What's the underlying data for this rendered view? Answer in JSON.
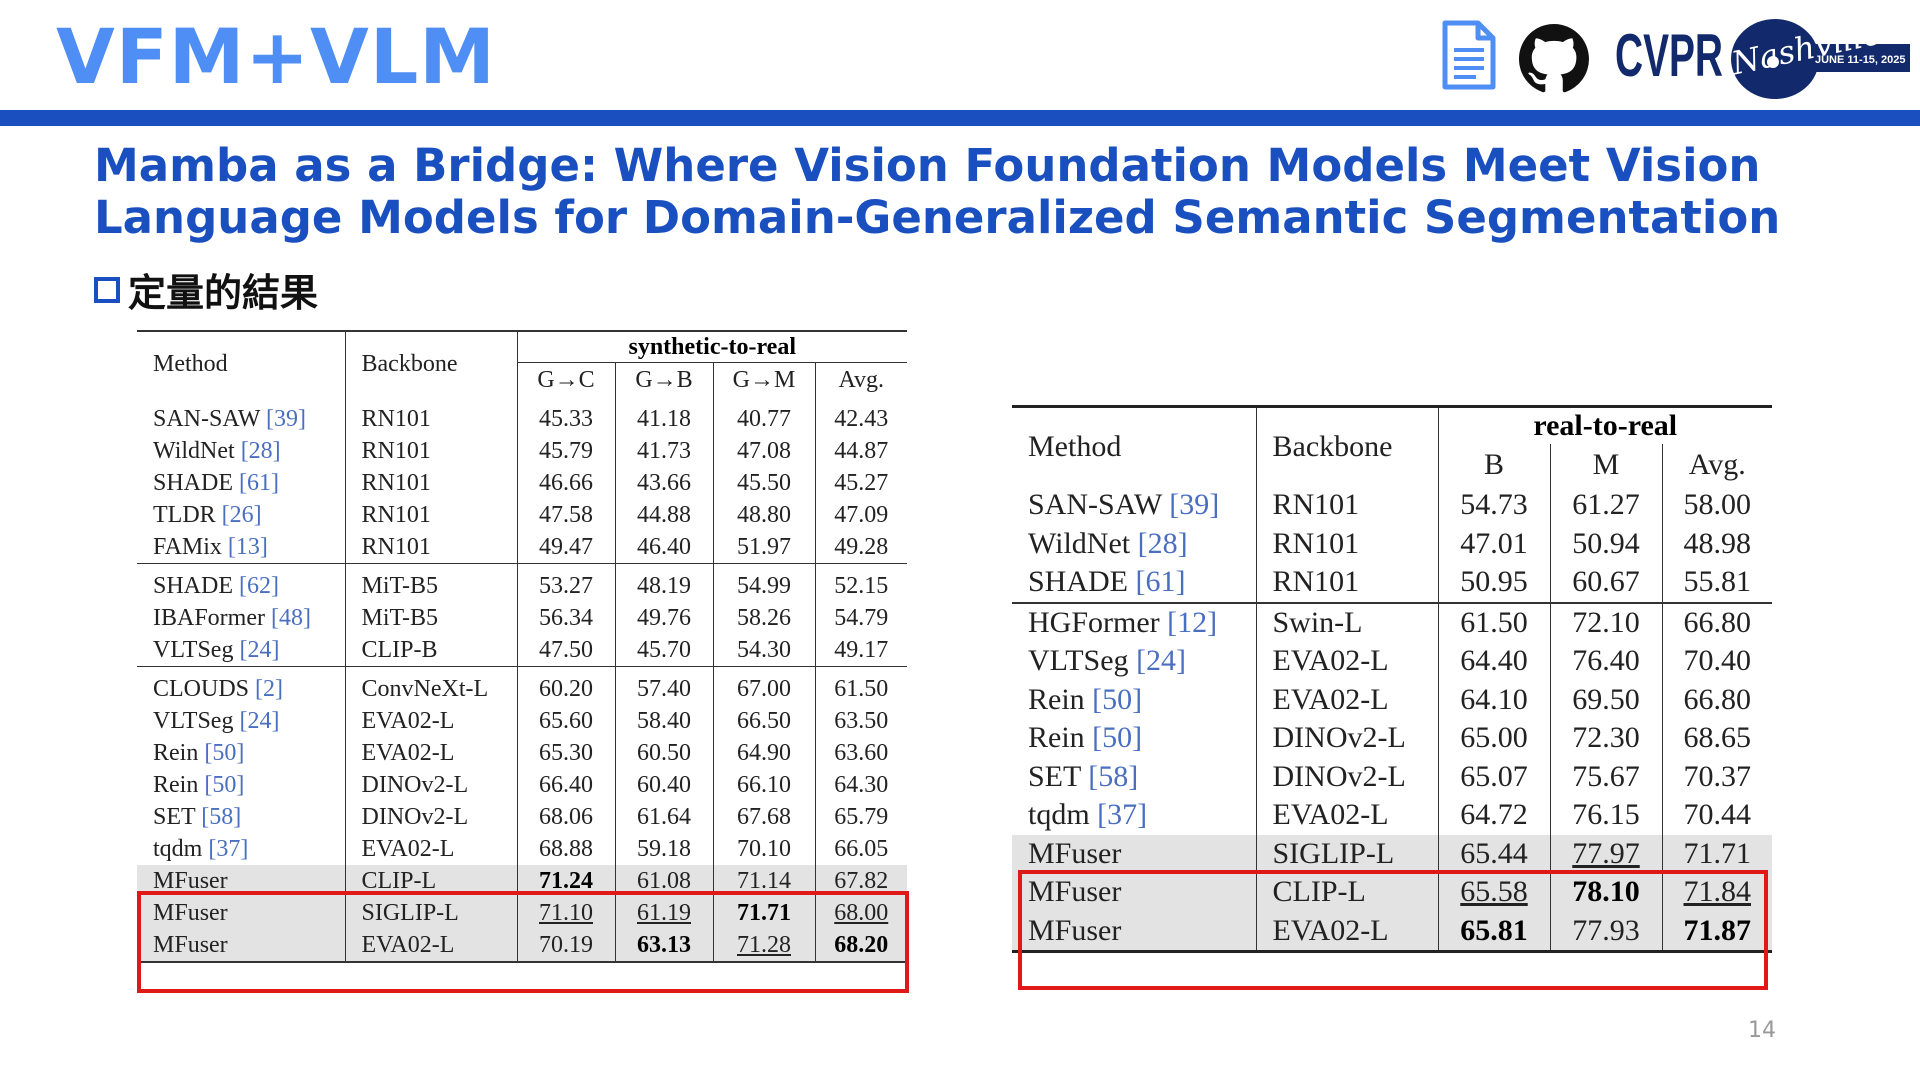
{
  "header": {
    "title": "VFM+VLM",
    "icons": [
      "document-icon",
      "github-icon"
    ],
    "logo": {
      "name": "CVPR",
      "text": "CVPR",
      "script": "Nashville",
      "dates": "JUNE 11-15, 2025"
    }
  },
  "paper_title": {
    "line1": "Mamba as a Bridge: Where Vision Foundation Models Meet Vision",
    "line2": "Language Models for Domain-Generalized Semantic Segmentation"
  },
  "section": {
    "label": "定量的結果"
  },
  "table_left": {
    "group_header": "synthetic-to-real",
    "headers": [
      "Method",
      "Backbone",
      "G→C",
      "G→B",
      "G→M",
      "Avg."
    ],
    "groups": [
      [
        {
          "method": "SAN-SAW",
          "ref": "[39]",
          "backbone": "RN101",
          "vals": [
            "45.33",
            "41.18",
            "40.77",
            "42.43"
          ]
        },
        {
          "method": "WildNet",
          "ref": "[28]",
          "backbone": "RN101",
          "vals": [
            "45.79",
            "41.73",
            "47.08",
            "44.87"
          ]
        },
        {
          "method": "SHADE",
          "ref": "[61]",
          "backbone": "RN101",
          "vals": [
            "46.66",
            "43.66",
            "45.50",
            "45.27"
          ]
        },
        {
          "method": "TLDR",
          "ref": "[26]",
          "backbone": "RN101",
          "vals": [
            "47.58",
            "44.88",
            "48.80",
            "47.09"
          ]
        },
        {
          "method": "FAMix",
          "ref": "[13]",
          "backbone": "RN101",
          "vals": [
            "49.47",
            "46.40",
            "51.97",
            "49.28"
          ]
        }
      ],
      [
        {
          "method": "SHADE",
          "ref": "[62]",
          "backbone": "MiT-B5",
          "vals": [
            "53.27",
            "48.19",
            "54.99",
            "52.15"
          ]
        },
        {
          "method": "IBAFormer",
          "ref": "[48]",
          "backbone": "MiT-B5",
          "vals": [
            "56.34",
            "49.76",
            "58.26",
            "54.79"
          ]
        },
        {
          "method": "VLTSeg",
          "ref": "[24]",
          "backbone": "CLIP-B",
          "vals": [
            "47.50",
            "45.70",
            "54.30",
            "49.17"
          ]
        }
      ],
      [
        {
          "method": "CLOUDS",
          "ref": "[2]",
          "backbone": "ConvNeXt-L",
          "vals": [
            "60.20",
            "57.40",
            "67.00",
            "61.50"
          ]
        },
        {
          "method": "VLTSeg",
          "ref": "[24]",
          "backbone": "EVA02-L",
          "vals": [
            "65.60",
            "58.40",
            "66.50",
            "63.50"
          ]
        },
        {
          "method": "Rein",
          "ref": "[50]",
          "backbone": "EVA02-L",
          "vals": [
            "65.30",
            "60.50",
            "64.90",
            "63.60"
          ]
        },
        {
          "method": "Rein",
          "ref": "[50]",
          "backbone": "DINOv2-L",
          "vals": [
            "66.40",
            "60.40",
            "66.10",
            "64.30"
          ]
        },
        {
          "method": "SET",
          "ref": "[58]",
          "backbone": "DINOv2-L",
          "vals": [
            "68.06",
            "61.64",
            "67.68",
            "65.79"
          ]
        },
        {
          "method": "tqdm",
          "ref": "[37]",
          "backbone": "EVA02-L",
          "vals": [
            "68.88",
            "59.18",
            "70.10",
            "66.05"
          ]
        },
        {
          "method": "MFuser",
          "ref": "",
          "backbone": "CLIP-L",
          "vals": [
            "71.24",
            "61.08",
            "71.14",
            "67.82"
          ],
          "style": [
            "b",
            "",
            "",
            ""
          ],
          "hl": true
        },
        {
          "method": "MFuser",
          "ref": "",
          "backbone": "SIGLIP-L",
          "vals": [
            "71.10",
            "61.19",
            "71.71",
            "68.00"
          ],
          "style": [
            "u",
            "u",
            "b",
            "u"
          ],
          "hl": true
        },
        {
          "method": "MFuser",
          "ref": "",
          "backbone": "EVA02-L",
          "vals": [
            "70.19",
            "63.13",
            "71.28",
            "68.20"
          ],
          "style": [
            "",
            "b",
            "u",
            "b"
          ],
          "hl": true
        }
      ]
    ]
  },
  "table_right": {
    "group_header": "real-to-real",
    "headers": [
      "Method",
      "Backbone",
      "B",
      "M",
      "Avg."
    ],
    "groups": [
      [
        {
          "method": "SAN-SAW",
          "ref": "[39]",
          "backbone": "RN101",
          "vals": [
            "54.73",
            "61.27",
            "58.00"
          ]
        },
        {
          "method": "WildNet",
          "ref": "[28]",
          "backbone": "RN101",
          "vals": [
            "47.01",
            "50.94",
            "48.98"
          ]
        },
        {
          "method": "SHADE",
          "ref": "[61]",
          "backbone": "RN101",
          "vals": [
            "50.95",
            "60.67",
            "55.81"
          ]
        }
      ],
      [
        {
          "method": "HGFormer",
          "ref": "[12]",
          "backbone": "Swin-L",
          "vals": [
            "61.50",
            "72.10",
            "66.80"
          ]
        },
        {
          "method": "VLTSeg",
          "ref": "[24]",
          "backbone": "EVA02-L",
          "vals": [
            "64.40",
            "76.40",
            "70.40"
          ]
        },
        {
          "method": "Rein",
          "ref": "[50]",
          "backbone": "EVA02-L",
          "vals": [
            "64.10",
            "69.50",
            "66.80"
          ]
        },
        {
          "method": "Rein",
          "ref": "[50]",
          "backbone": "DINOv2-L",
          "vals": [
            "65.00",
            "72.30",
            "68.65"
          ]
        },
        {
          "method": "SET",
          "ref": "[58]",
          "backbone": "DINOv2-L",
          "vals": [
            "65.07",
            "75.67",
            "70.37"
          ]
        },
        {
          "method": "tqdm",
          "ref": "[37]",
          "backbone": "EVA02-L",
          "vals": [
            "64.72",
            "76.15",
            "70.44"
          ]
        },
        {
          "method": "MFuser",
          "ref": "",
          "backbone": "SIGLIP-L",
          "vals": [
            "65.44",
            "77.97",
            "71.71"
          ],
          "style": [
            "",
            "u",
            ""
          ],
          "hl": true
        },
        {
          "method": "MFuser",
          "ref": "",
          "backbone": "CLIP-L",
          "vals": [
            "65.58",
            "78.10",
            "71.84"
          ],
          "style": [
            "u",
            "b",
            "u"
          ],
          "hl": true
        },
        {
          "method": "MFuser",
          "ref": "",
          "backbone": "EVA02-L",
          "vals": [
            "65.81",
            "77.93",
            "71.87"
          ],
          "style": [
            "b",
            "",
            "b"
          ],
          "hl": true
        }
      ]
    ]
  },
  "footer": {
    "page_number": "14"
  },
  "colors": {
    "title_blue": "#4f8ef5",
    "dark_blue": "#1a4fc0",
    "highlight_red": "#e01818",
    "ref_blue": "#4a6fc0"
  }
}
